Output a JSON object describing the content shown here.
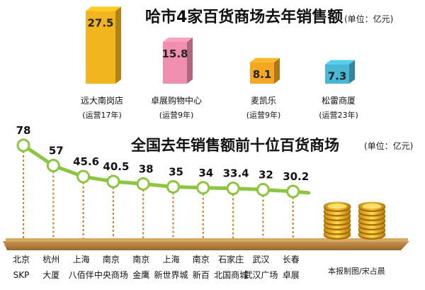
{
  "chart_data": [
    {
      "type": "bar",
      "title": "哈市4家百货商场去年销售额",
      "unit": "(单位：亿元)",
      "categories": [
        "远大南岗店",
        "卓展购物中心",
        "麦凯乐",
        "松雷商厦"
      ],
      "notes": [
        "(运营17年)",
        "(运营9年)",
        "(运营9年)",
        "(运营23年)"
      ],
      "values": [
        27.5,
        15.8,
        8.1,
        7.3
      ],
      "value_labels": [
        "27.5",
        "15.8",
        "8.1",
        "7.3"
      ],
      "colors": [
        "#f2b51d",
        "#f08fb0",
        "#f5a623",
        "#49b8d6"
      ],
      "ylim": [
        0,
        30
      ]
    },
    {
      "type": "line",
      "title": "全国去年销售额前十位百货商场",
      "unit": "(单位：亿元)",
      "categories": [
        [
          "北京",
          "SKP"
        ],
        [
          "杭州",
          "大厦"
        ],
        [
          "上海",
          "八佰伴"
        ],
        [
          "南京",
          "中央商场"
        ],
        [
          "南京",
          "金鹰"
        ],
        [
          "上海",
          "新世界城"
        ],
        [
          "南京",
          "新百"
        ],
        [
          "石家庄",
          "北国商城"
        ],
        [
          "武汉",
          "武汉广场"
        ],
        [
          "长春",
          "卓展"
        ]
      ],
      "values": [
        78,
        57,
        45.6,
        40.5,
        38,
        35,
        34,
        33.4,
        32,
        30.2
      ],
      "value_labels": [
        "78",
        "57",
        "45.6",
        "40.5",
        "38",
        "35",
        "34",
        "33.4",
        "32",
        "30.2"
      ],
      "colors": {
        "line": "#8cc63f",
        "stem": "#c98a3a",
        "base": "#b07a2a"
      },
      "ylim": [
        25,
        85
      ]
    }
  ],
  "credit": "本报制图/宋占晨"
}
